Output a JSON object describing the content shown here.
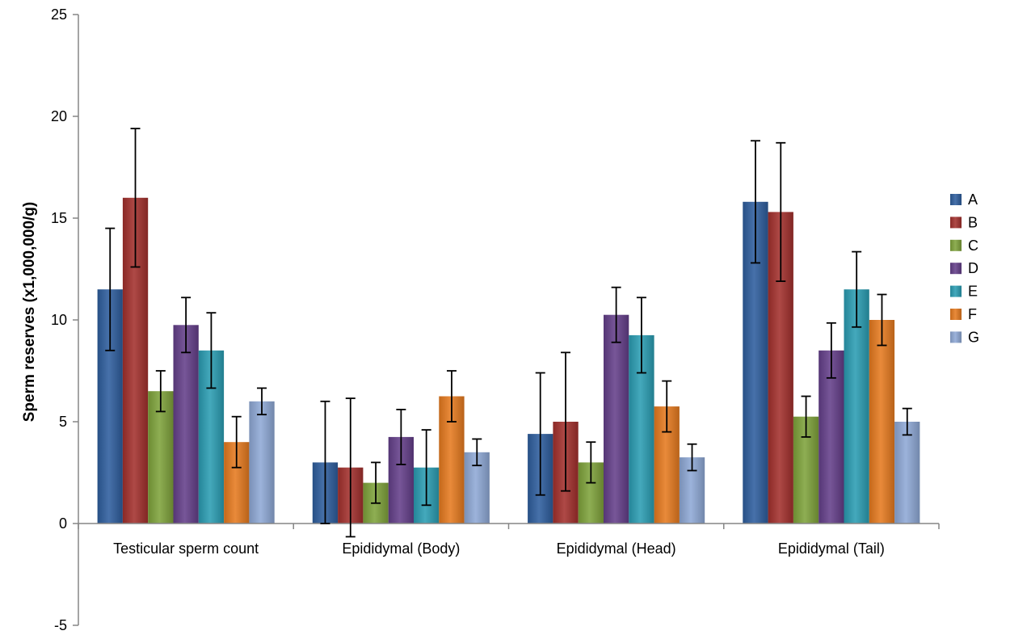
{
  "chart_data": {
    "type": "bar",
    "ylabel": "Sperm  reserves (x1,000,000/g)",
    "xlabel": "",
    "ylim": [
      -5,
      25
    ],
    "yticks": [
      -5,
      0,
      5,
      10,
      15,
      20,
      25
    ],
    "categories": [
      "Testicular sperm count",
      "Epididymal (Body)",
      "Epididymal (Head)",
      "Epididymal (Tail)"
    ],
    "legend_position": "right",
    "grid": false,
    "series": [
      {
        "name": "A",
        "color": "#2E5E9E",
        "values": [
          11.5,
          3.0,
          4.4,
          15.8
        ],
        "errors": [
          3.0,
          3.0,
          3.0,
          3.0
        ]
      },
      {
        "name": "B",
        "color": "#A3302D",
        "values": [
          16.0,
          2.75,
          5.0,
          15.3
        ],
        "errors": [
          3.4,
          3.4,
          3.4,
          3.4
        ]
      },
      {
        "name": "C",
        "color": "#7FA33B",
        "values": [
          6.5,
          2.0,
          3.0,
          5.25
        ],
        "errors": [
          1.0,
          1.0,
          1.0,
          1.0
        ]
      },
      {
        "name": "D",
        "color": "#643F8A",
        "values": [
          9.75,
          4.25,
          10.25,
          8.5
        ],
        "errors": [
          1.35,
          1.35,
          1.35,
          1.35
        ]
      },
      {
        "name": "E",
        "color": "#2A9DB3",
        "values": [
          8.5,
          2.75,
          9.25,
          11.5
        ],
        "errors": [
          1.85,
          1.85,
          1.85,
          1.85
        ]
      },
      {
        "name": "F",
        "color": "#E67A1F",
        "values": [
          4.0,
          6.25,
          5.75,
          10.0
        ],
        "errors": [
          1.25,
          1.25,
          1.25,
          1.25
        ]
      },
      {
        "name": "G",
        "color": "#8FA9D6",
        "values": [
          6.0,
          3.5,
          3.25,
          5.0
        ],
        "errors": [
          0.65,
          0.65,
          0.65,
          0.65
        ]
      }
    ]
  }
}
